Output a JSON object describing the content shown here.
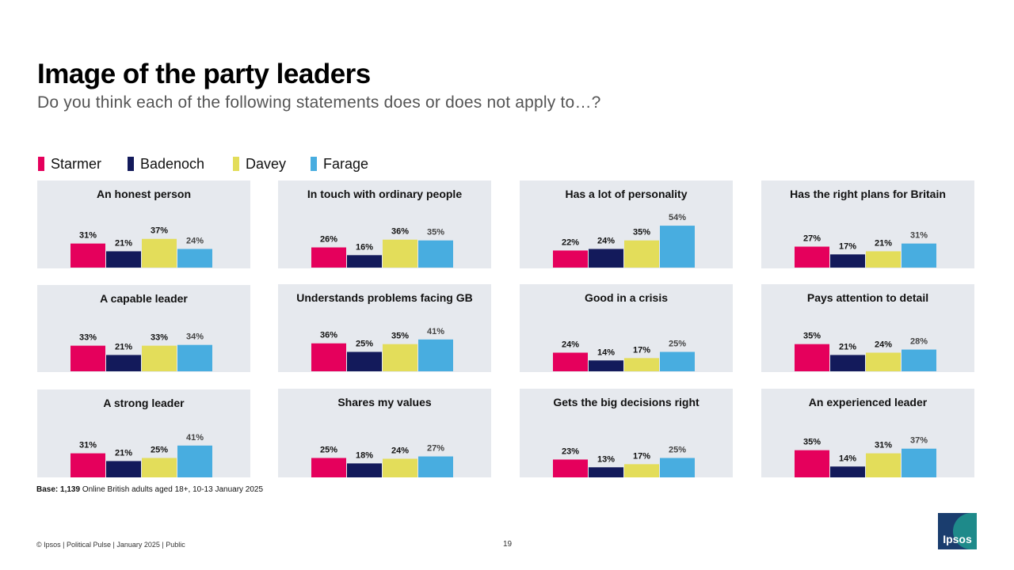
{
  "title": "Image of the party leaders",
  "subtitle": "Do you think each of the following statements does or does not apply to…?",
  "legend": [
    {
      "label": "Starmer",
      "color": "#e5005c"
    },
    {
      "label": "Badenoch",
      "color": "#131a5b"
    },
    {
      "label": "Davey",
      "color": "#e3dd5a"
    },
    {
      "label": "Farage",
      "color": "#48ade0"
    }
  ],
  "chart_data": {
    "type": "bar",
    "series_names": [
      "Starmer",
      "Badenoch",
      "Davey",
      "Farage"
    ],
    "series_colors": [
      "#e5005c",
      "#131a5b",
      "#e3dd5a",
      "#48ade0"
    ],
    "unit": "%",
    "ylim": [
      0,
      60
    ],
    "panels": [
      {
        "title": "An honest person",
        "values": [
          31,
          21,
          37,
          24
        ],
        "labels": [
          "31%",
          "21%",
          "37%",
          "24%"
        ]
      },
      {
        "title": "In touch with ordinary people",
        "values": [
          26,
          16,
          36,
          35
        ],
        "labels": [
          "26%",
          "16%",
          "36%",
          "35%"
        ]
      },
      {
        "title": "Has a lot of personality",
        "values": [
          22,
          24,
          35,
          54
        ],
        "labels": [
          "22%",
          "24%",
          "35%",
          "54%"
        ]
      },
      {
        "title": "Has the right plans for Britain",
        "values": [
          27,
          17,
          21,
          31
        ],
        "labels": [
          "27%",
          "17%",
          "21%",
          "31%"
        ]
      },
      {
        "title": "A capable leader",
        "values": [
          33,
          21,
          33,
          34
        ],
        "labels": [
          "33%",
          "21%",
          "33%",
          "34%"
        ]
      },
      {
        "title": "Understands problems facing GB",
        "values": [
          36,
          25,
          35,
          41
        ],
        "labels": [
          "36%",
          "25%",
          "35%",
          "41%"
        ]
      },
      {
        "title": "Good in a crisis",
        "values": [
          24,
          14,
          17,
          25
        ],
        "labels": [
          "24%",
          "14%",
          "17%",
          "25%"
        ]
      },
      {
        "title": "Pays attention to detail",
        "values": [
          35,
          21,
          24,
          28
        ],
        "labels": [
          "35%",
          "21%",
          "24%",
          "28%"
        ]
      },
      {
        "title": "A strong leader",
        "values": [
          31,
          21,
          25,
          41
        ],
        "labels": [
          "31%",
          "21%",
          "25%",
          "41%"
        ]
      },
      {
        "title": "Shares my values",
        "values": [
          25,
          18,
          24,
          27
        ],
        "labels": [
          "25%",
          "18%",
          "24%",
          "27%"
        ]
      },
      {
        "title": "Gets the big decisions right",
        "values": [
          23,
          13,
          17,
          25
        ],
        "labels": [
          "23%",
          "13%",
          "17%",
          "25%"
        ]
      },
      {
        "title": "An experienced leader",
        "values": [
          35,
          14,
          31,
          37
        ],
        "labels": [
          "35%",
          "14%",
          "31%",
          "37%"
        ]
      }
    ]
  },
  "base": {
    "label": "Base:",
    "count": "1,139",
    "text": "Online British adults aged 18+,  10-13 January 2025"
  },
  "footer": {
    "left": "© Ipsos | Political Pulse | January 2025 | Public",
    "page": "19"
  },
  "logo": {
    "text": "Ipsos"
  }
}
